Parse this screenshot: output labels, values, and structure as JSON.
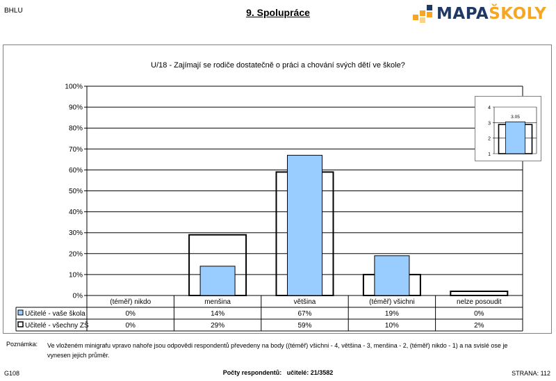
{
  "header": {
    "code": "BHLU",
    "title": "9. Spolupráce",
    "logo_text": "MAPAŠKOLY",
    "logo_part1": "MAPA",
    "logo_part2": "ŠKOLY"
  },
  "colors": {
    "school_bar": "#99CCFF",
    "all_bar": "#FFFFFF",
    "grid": "#000000",
    "logo_navy": "#1F3864",
    "logo_orange": "#F5A623"
  },
  "chart_data": [
    {
      "type": "bar",
      "title": "U/18 - Zajímají se rodiče dostatečně o práci a chování svých dětí ve škole?",
      "categories": [
        "(téměř) nikdo",
        "menšina",
        "většina",
        "(téměř) všichni",
        "nelze posoudit"
      ],
      "y_ticks": [
        "0%",
        "10%",
        "20%",
        "30%",
        "40%",
        "50%",
        "60%",
        "70%",
        "80%",
        "90%",
        "100%"
      ],
      "ylim": [
        0,
        100
      ],
      "grid": true,
      "series": [
        {
          "name": "Učitelé - vaše škola",
          "values": [
            0,
            14,
            67,
            19,
            0
          ],
          "labels": [
            "0%",
            "14%",
            "67%",
            "19%",
            "0%"
          ]
        },
        {
          "name": "Učitelé - všechny ZŠ",
          "values": [
            0,
            29,
            59,
            10,
            2
          ],
          "labels": [
            "0%",
            "29%",
            "59%",
            "10%",
            "2%"
          ]
        }
      ]
    },
    {
      "type": "bar",
      "y_ticks": [
        "1",
        "2",
        "3",
        "4"
      ],
      "ylim": [
        1,
        4
      ],
      "series": [
        {
          "name": "Učitelé - vaše škola",
          "values": [
            3.05
          ],
          "labels": [
            "3.05"
          ]
        },
        {
          "name": "Učitelé - všechny ZŠ",
          "values": [
            2.88
          ]
        }
      ]
    }
  ],
  "note": {
    "label": "Poznámka:",
    "text": "Ve vloženém minigrafu vpravo nahoře jsou odpovědi respondentů převedeny na body ((téměř) všichni - 4, většina - 3, menšina - 2, (téměř) nikdo - 1) a na svislé ose je vynesen jejich průměr."
  },
  "footer": {
    "code": "G108",
    "respondents_label": "Počty respondentů:",
    "respondents_value": "učitelé: 21/3582",
    "page": "STRANA: 112"
  }
}
